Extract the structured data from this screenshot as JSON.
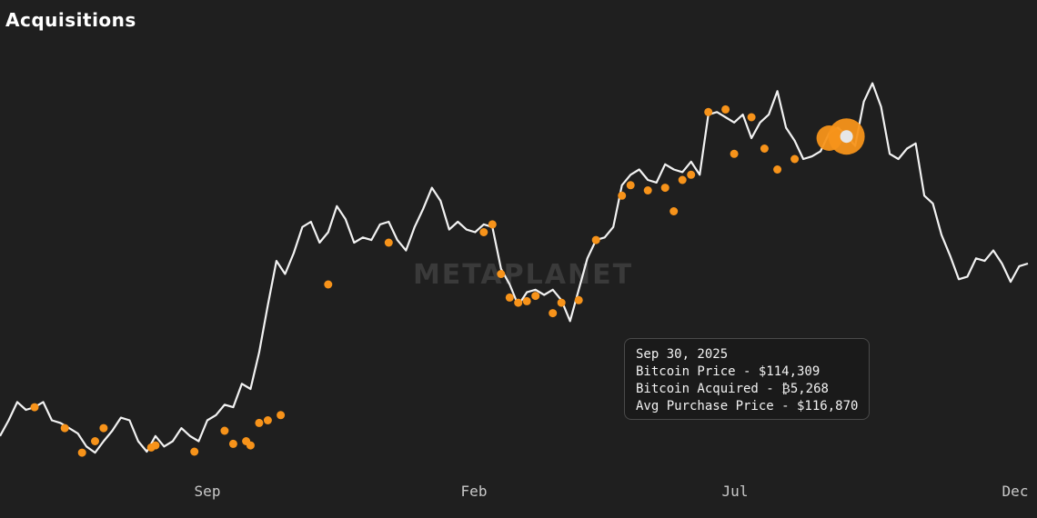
{
  "title": "Acquisitions",
  "watermark": "METAPLANET",
  "colors": {
    "background": "#1f1f1f",
    "price_line": "#f2f2f2",
    "acquisition_marker": "#f7931a",
    "highlight_point": "#e6e6e6"
  },
  "tooltip": {
    "date": "Sep 30, 2025",
    "price_line": "Bitcoin Price - $114,309",
    "acquired_line": "Bitcoin Acquired - ₿5,268",
    "avg_line": "Avg Purchase Price - $116,870"
  },
  "chart_data": {
    "type": "line",
    "title": "Acquisitions",
    "xlabel": "",
    "ylabel": "",
    "x_ticks": [
      "Sep",
      "Feb",
      "Jul",
      "Dec"
    ],
    "x_range": [
      "2024-06-15",
      "2025-12-15"
    ],
    "y_range_usd": [
      50000,
      130000
    ],
    "grid": false,
    "legend": "none",
    "series": [
      {
        "values_usd": [
          [
            0,
            57000
          ],
          [
            2,
            60000
          ],
          [
            4,
            63500
          ],
          [
            6,
            62000
          ],
          [
            8,
            62500
          ],
          [
            10,
            63500
          ],
          [
            12,
            60000
          ],
          [
            14,
            59500
          ],
          [
            16,
            58500
          ],
          [
            18,
            57500
          ],
          [
            20,
            55000
          ],
          [
            22,
            53800
          ],
          [
            24,
            56000
          ],
          [
            26,
            58000
          ],
          [
            28,
            60500
          ],
          [
            30,
            60000
          ],
          [
            32,
            56000
          ],
          [
            34,
            54000
          ],
          [
            36,
            57000
          ],
          [
            38,
            55000
          ],
          [
            40,
            56000
          ],
          [
            42,
            58500
          ],
          [
            44,
            57000
          ],
          [
            46,
            56000
          ],
          [
            48,
            60000
          ],
          [
            50,
            61000
          ],
          [
            52,
            63000
          ],
          [
            54,
            62500
          ],
          [
            56,
            67000
          ],
          [
            58,
            66000
          ],
          [
            60,
            73000
          ],
          [
            62,
            82000
          ],
          [
            64,
            90500
          ],
          [
            66,
            88000
          ],
          [
            68,
            92000
          ],
          [
            70,
            97000
          ],
          [
            72,
            98000
          ],
          [
            74,
            94000
          ],
          [
            76,
            96000
          ],
          [
            78,
            101000
          ],
          [
            80,
            98500
          ],
          [
            82,
            94000
          ],
          [
            84,
            95000
          ],
          [
            86,
            94500
          ],
          [
            88,
            97500
          ],
          [
            90,
            98000
          ],
          [
            92,
            94500
          ],
          [
            94,
            92500
          ],
          [
            96,
            97000
          ],
          [
            98,
            100500
          ],
          [
            100,
            104500
          ],
          [
            102,
            102000
          ],
          [
            104,
            96500
          ],
          [
            106,
            98000
          ],
          [
            108,
            96500
          ],
          [
            110,
            96000
          ],
          [
            112,
            97500
          ],
          [
            114,
            97000
          ],
          [
            116,
            89000
          ],
          [
            118,
            86000
          ],
          [
            120,
            82000
          ],
          [
            122,
            84500
          ],
          [
            124,
            85000
          ],
          [
            126,
            84000
          ],
          [
            128,
            85000
          ],
          [
            130,
            83000
          ],
          [
            132,
            79000
          ],
          [
            134,
            85000
          ],
          [
            136,
            91000
          ],
          [
            138,
            94500
          ],
          [
            140,
            95000
          ],
          [
            142,
            97000
          ],
          [
            144,
            105000
          ],
          [
            146,
            107000
          ],
          [
            148,
            108000
          ],
          [
            150,
            106000
          ],
          [
            152,
            105500
          ],
          [
            154,
            109000
          ],
          [
            156,
            108000
          ],
          [
            158,
            107500
          ],
          [
            160,
            109500
          ],
          [
            162,
            107000
          ],
          [
            164,
            118500
          ],
          [
            166,
            119000
          ],
          [
            168,
            118000
          ],
          [
            170,
            117000
          ],
          [
            172,
            118500
          ],
          [
            174,
            114000
          ],
          [
            176,
            117000
          ],
          [
            178,
            118500
          ],
          [
            180,
            123000
          ],
          [
            182,
            116000
          ],
          [
            184,
            113500
          ],
          [
            186,
            110000
          ],
          [
            188,
            110500
          ],
          [
            190,
            111500
          ],
          [
            192,
            115000
          ],
          [
            194,
            116000
          ],
          [
            196,
            114500
          ],
          [
            198,
            112500
          ],
          [
            200,
            121000
          ],
          [
            202,
            124500
          ],
          [
            204,
            120000
          ],
          [
            206,
            111000
          ],
          [
            208,
            110000
          ],
          [
            210,
            112000
          ],
          [
            212,
            113000
          ],
          [
            214,
            103000
          ],
          [
            216,
            101500
          ],
          [
            218,
            95500
          ],
          [
            220,
            91500
          ],
          [
            222,
            87000
          ],
          [
            224,
            87500
          ],
          [
            226,
            91000
          ],
          [
            228,
            90500
          ],
          [
            230,
            92500
          ],
          [
            232,
            90000
          ],
          [
            234,
            86500
          ],
          [
            236,
            89500
          ],
          [
            238,
            90000
          ]
        ]
      }
    ],
    "acquisitions": [
      [
        8,
        62500
      ],
      [
        15,
        58500
      ],
      [
        19,
        53800
      ],
      [
        22,
        56000
      ],
      [
        24,
        58500
      ],
      [
        35,
        54800
      ],
      [
        36,
        55200
      ],
      [
        45,
        54000
      ],
      [
        52,
        58000
      ],
      [
        54,
        55500
      ],
      [
        57,
        56000
      ],
      [
        58,
        55200
      ],
      [
        60,
        59500
      ],
      [
        62,
        60000
      ],
      [
        65,
        61000
      ],
      [
        76,
        86000
      ],
      [
        90,
        94000
      ],
      [
        112,
        96000
      ],
      [
        114,
        97500
      ],
      [
        116,
        88000
      ],
      [
        118,
        83500
      ],
      [
        120,
        82500
      ],
      [
        122,
        82800
      ],
      [
        124,
        83800
      ],
      [
        128,
        80500
      ],
      [
        130,
        82500
      ],
      [
        134,
        83000
      ],
      [
        138,
        94500
      ],
      [
        144,
        103000
      ],
      [
        146,
        105000
      ],
      [
        150,
        104000
      ],
      [
        154,
        104500
      ],
      [
        156,
        100000
      ],
      [
        158,
        106000
      ],
      [
        160,
        107000
      ],
      [
        164,
        119000
      ],
      [
        168,
        119500
      ],
      [
        170,
        111000
      ],
      [
        174,
        118000
      ],
      [
        177,
        112000
      ],
      [
        180,
        108000
      ],
      [
        184,
        110000
      ]
    ],
    "large_acquisitions": [
      [
        192,
        114000,
        2
      ],
      [
        196,
        114309,
        3
      ]
    ],
    "highlight": {
      "date": "Sep 30, 2025",
      "price": 114309
    }
  }
}
